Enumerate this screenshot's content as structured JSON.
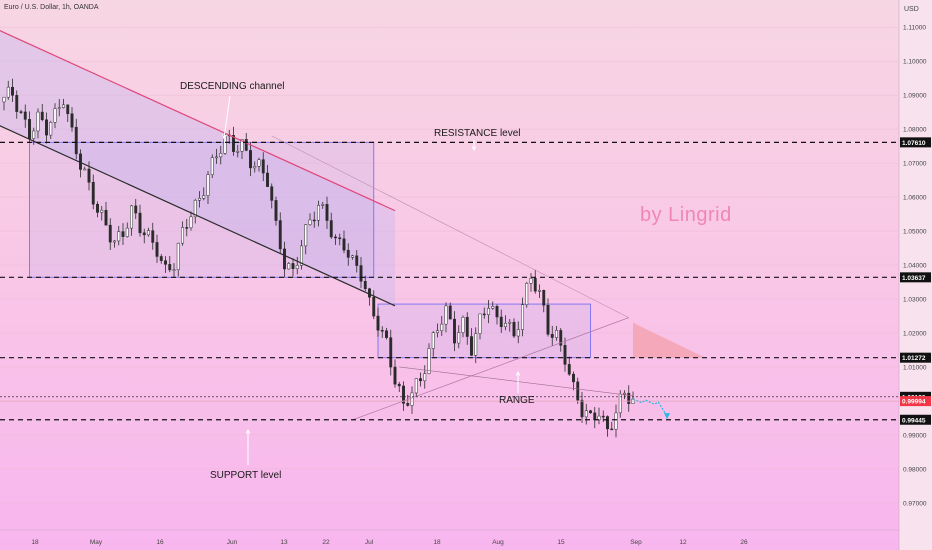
{
  "header": {
    "symbol_line": "Euro / U.S. Dollar, 1h, OANDA",
    "currency": "USD"
  },
  "annotations": {
    "descending": "DESCENDING channel",
    "resistance": "RESISTANCE level",
    "range": "RANGE",
    "support": "SUPPORT level",
    "brand": "by Lingrid"
  },
  "colors": {
    "candle": "#2b2b2b",
    "channel_upper": "#e0467a",
    "channel_lower": "#2b2b2b",
    "box": "#7c6ff2",
    "projection": "#28b6e6",
    "current_price_tag": "#f23645",
    "triangle": "#f4a3b2"
  },
  "chart_data": {
    "type": "candlestick",
    "ylim": [
      0.962,
      1.118
    ],
    "y_ticks": [
      "1.11000",
      "1.10000",
      "1.09000",
      "1.08000",
      "1.07000",
      "1.06000",
      "1.05000",
      "1.04000",
      "1.03000",
      "1.02000",
      "1.01000",
      "1.00000",
      "0.99000",
      "0.98000",
      "0.97000"
    ],
    "x_ticks": [
      "18",
      "May",
      "16",
      "Jun",
      "13",
      "22",
      "Jul",
      "18",
      "Aug",
      "15",
      "Sep",
      "12",
      "26"
    ],
    "price_path": [
      [
        0,
        1.088
      ],
      [
        2,
        1.09
      ],
      [
        4,
        1.085
      ],
      [
        6,
        1.08
      ],
      [
        8,
        1.083
      ],
      [
        10,
        1.079
      ],
      [
        12,
        1.083
      ],
      [
        14,
        1.09
      ],
      [
        16,
        1.08
      ],
      [
        18,
        1.07
      ],
      [
        20,
        1.062
      ],
      [
        22,
        1.055
      ],
      [
        24,
        1.052
      ],
      [
        26,
        1.048
      ],
      [
        28,
        1.05
      ],
      [
        30,
        1.055
      ],
      [
        32,
        1.05
      ],
      [
        34,
        1.048
      ],
      [
        36,
        1.046
      ],
      [
        38,
        1.039
      ],
      [
        40,
        1.04
      ],
      [
        42,
        1.048
      ],
      [
        44,
        1.055
      ],
      [
        46,
        1.06
      ],
      [
        48,
        1.068
      ],
      [
        50,
        1.072
      ],
      [
        52,
        1.076
      ],
      [
        54,
        1.074
      ],
      [
        56,
        1.076
      ],
      [
        58,
        1.072
      ],
      [
        60,
        1.069
      ],
      [
        62,
        1.064
      ],
      [
        64,
        1.05
      ],
      [
        66,
        1.041
      ],
      [
        68,
        1.039
      ],
      [
        70,
        1.047
      ],
      [
        72,
        1.052
      ],
      [
        74,
        1.056
      ],
      [
        76,
        1.054
      ],
      [
        78,
        1.048
      ],
      [
        80,
        1.047
      ],
      [
        82,
        1.04
      ],
      [
        84,
        1.036
      ],
      [
        86,
        1.028
      ],
      [
        88,
        1.024
      ],
      [
        90,
        1.018
      ],
      [
        92,
        1.006
      ],
      [
        94,
        0.997
      ],
      [
        96,
        1.002
      ],
      [
        98,
        1.007
      ],
      [
        100,
        1.016
      ],
      [
        102,
        1.022
      ],
      [
        104,
        1.025
      ],
      [
        106,
        1.018
      ],
      [
        108,
        1.023
      ],
      [
        110,
        1.017
      ],
      [
        112,
        1.024
      ],
      [
        114,
        1.028
      ],
      [
        116,
        1.022
      ],
      [
        118,
        1.024
      ],
      [
        120,
        1.02
      ],
      [
        122,
        1.029
      ],
      [
        124,
        1.036
      ],
      [
        126,
        1.03
      ],
      [
        128,
        1.021
      ],
      [
        130,
        1.02
      ],
      [
        132,
        1.014
      ],
      [
        134,
        1.003
      ],
      [
        136,
        0.996
      ],
      [
        138,
        0.994
      ],
      [
        140,
        0.998
      ],
      [
        142,
        0.992
      ],
      [
        144,
        0.997
      ],
      [
        146,
        1.001
      ],
      [
        148,
        0.999
      ]
    ],
    "horizontal_levels": [
      {
        "label": "1.07610",
        "value": 1.0761,
        "style": "dashed"
      },
      {
        "label": "1.03637",
        "value": 1.03637,
        "style": "dashed"
      },
      {
        "label": "1.01272",
        "value": 1.01272,
        "style": "dashed"
      },
      {
        "label": "1.00120",
        "value": 1.0012,
        "style": "dotted"
      },
      {
        "label": "0.99445",
        "value": 0.99445,
        "style": "dashed"
      }
    ],
    "current_price": {
      "label": "0.99994",
      "value": 0.99994
    },
    "trendlines": [
      {
        "name": "channel-upper",
        "from": [
          -1,
          1.109
        ],
        "to": [
          92,
          1.056
        ]
      },
      {
        "name": "channel-lower",
        "from": [
          -1,
          1.081
        ],
        "to": [
          92,
          1.028
        ]
      },
      {
        "name": "long-trend",
        "from": [
          63,
          1.078
        ],
        "to": [
          147,
          1.0245
        ]
      },
      {
        "name": "range-rising",
        "from": [
          82,
          0.9944
        ],
        "to": [
          147,
          1.0245
        ]
      },
      {
        "name": "minor-down",
        "from": [
          93,
          1.01
        ],
        "to": [
          148,
          1.0015
        ]
      }
    ],
    "boxes": [
      {
        "name": "upper-range-box",
        "x": [
          6,
          87
        ],
        "y": [
          1.03637,
          1.0761
        ]
      },
      {
        "name": "lower-range-box",
        "x": [
          88,
          138
        ],
        "y": [
          1.01272,
          1.0285
        ]
      }
    ]
  }
}
